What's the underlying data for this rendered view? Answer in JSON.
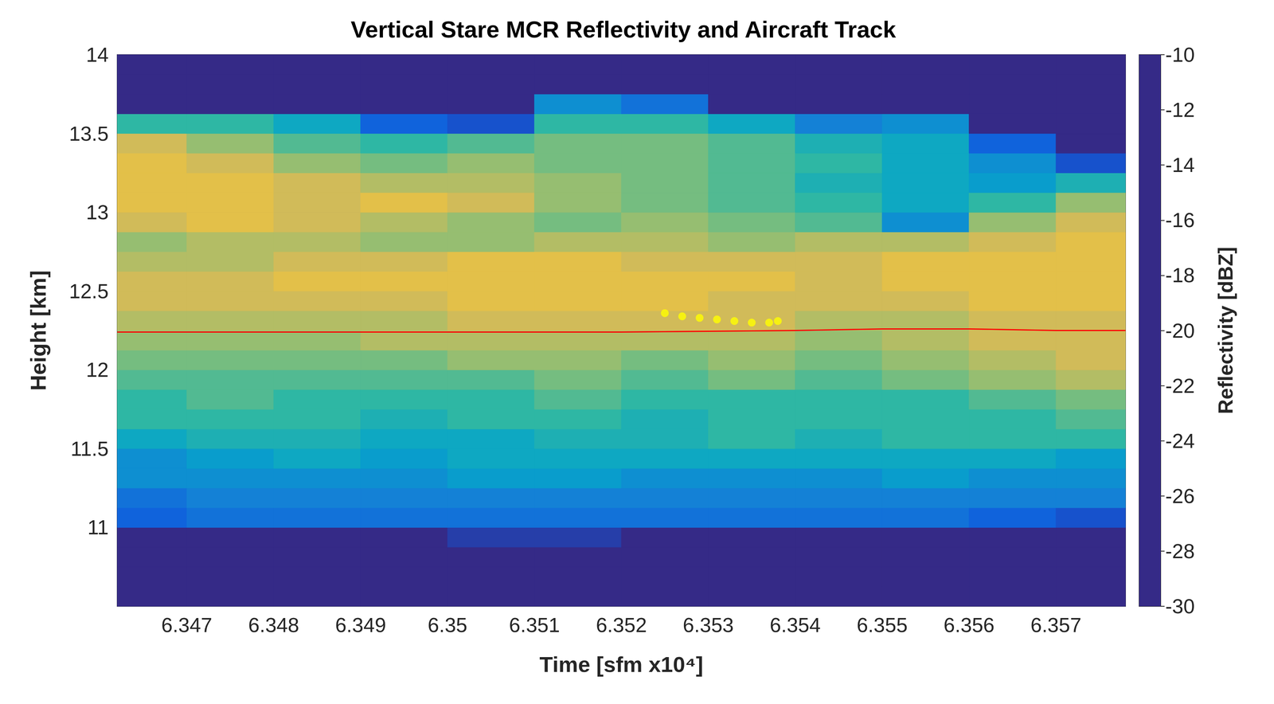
{
  "chart_data": {
    "type": "heatmap",
    "title": "Vertical Stare MCR Reflectivity and Aircraft Track",
    "x_label": "Time [sfm x10⁴]",
    "y_label": "Height [km]",
    "xlim": [
      6.3462,
      6.3578
    ],
    "ylim": [
      10.5,
      14
    ],
    "xticks": [
      6.347,
      6.348,
      6.349,
      6.35,
      6.351,
      6.352,
      6.353,
      6.354,
      6.355,
      6.356,
      6.357
    ],
    "yticks": [
      11,
      11.5,
      12,
      12.5,
      13,
      13.5,
      14
    ],
    "x": [
      6.3465,
      6.3475,
      6.3485,
      6.3495,
      6.3505,
      6.3515,
      6.3525,
      6.3535,
      6.3545,
      6.3555,
      6.3565,
      6.3575
    ],
    "y": [
      10.5625,
      10.6875,
      10.8125,
      10.9375,
      11.0625,
      11.1875,
      11.3125,
      11.4375,
      11.5625,
      11.6875,
      11.8125,
      11.9375,
      12.0625,
      12.1875,
      12.3125,
      12.4375,
      12.5625,
      12.6875,
      12.8125,
      12.9375,
      13.0625,
      13.1875,
      13.3125,
      13.4375,
      13.5625,
      13.6875,
      13.8125,
      13.9375
    ],
    "values": [
      [
        -30,
        -30,
        -30,
        -30,
        -30,
        -30,
        -30,
        -30,
        -30,
        -30,
        -30,
        -30
      ],
      [
        -30,
        -30,
        -30,
        -30,
        -30,
        -30,
        -30,
        -30,
        -30,
        -30,
        -30,
        -30
      ],
      [
        -30,
        -30,
        -30,
        -30,
        -30,
        -30,
        -30,
        -30,
        -30,
        -30,
        -30,
        -30
      ],
      [
        -30,
        -30,
        -30,
        -30,
        -29,
        -29,
        -30,
        -30,
        -30,
        -30,
        -30,
        -30
      ],
      [
        -27,
        -26,
        -26,
        -26,
        -26,
        -26,
        -26,
        -26,
        -26,
        -26,
        -27,
        -28
      ],
      [
        -26,
        -25,
        -25,
        -25,
        -25,
        -25,
        -25,
        -25,
        -25,
        -25,
        -25,
        -25
      ],
      [
        -24,
        -24,
        -24,
        -24,
        -23,
        -23,
        -24,
        -24,
        -24,
        -23,
        -24,
        -24
      ],
      [
        -24,
        -23,
        -22,
        -23,
        -22,
        -22,
        -22,
        -22,
        -22,
        -22,
        -22,
        -23
      ],
      [
        -22,
        -21,
        -21,
        -22,
        -22,
        -21,
        -21,
        -20,
        -21,
        -20,
        -20,
        -20
      ],
      [
        -20,
        -20,
        -20,
        -21,
        -20,
        -20,
        -21,
        -20,
        -20,
        -20,
        -20,
        -19
      ],
      [
        -20,
        -19,
        -20,
        -20,
        -20,
        -19,
        -20,
        -20,
        -20,
        -20,
        -19,
        -18
      ],
      [
        -19,
        -19,
        -19,
        -19,
        -19,
        -18,
        -19,
        -18,
        -19,
        -18,
        -17,
        -16
      ],
      [
        -18,
        -18,
        -18,
        -18,
        -17,
        -17,
        -18,
        -17,
        -18,
        -17,
        -16,
        -15
      ],
      [
        -17,
        -17,
        -17,
        -16,
        -16,
        -16,
        -16,
        -16,
        -17,
        -16,
        -15,
        -15
      ],
      [
        -16,
        -16,
        -16,
        -16,
        -15,
        -15,
        -15,
        -15,
        -16,
        -16,
        -15,
        -15
      ],
      [
        -15,
        -15,
        -15,
        -15,
        -14,
        -14,
        -14,
        -15,
        -15,
        -15,
        -14,
        -14
      ],
      [
        -15,
        -15,
        -14,
        -14,
        -14,
        -14,
        -14,
        -14,
        -15,
        -14,
        -14,
        -14
      ],
      [
        -16,
        -16,
        -15,
        -15,
        -14,
        -14,
        -15,
        -15,
        -15,
        -14,
        -14,
        -14
      ],
      [
        -17,
        -16,
        -16,
        -17,
        -17,
        -16,
        -16,
        -17,
        -16,
        -16,
        -15,
        -14
      ],
      [
        -15,
        -14,
        -15,
        -16,
        -17,
        -18,
        -17,
        -18,
        -19,
        -24,
        -17,
        -15
      ],
      [
        -14,
        -14,
        -15,
        -14,
        -15,
        -17,
        -18,
        -19,
        -20,
        -22,
        -20,
        -17
      ],
      [
        -14,
        -14,
        -15,
        -16,
        -16,
        -17,
        -18,
        -19,
        -21,
        -22,
        -23,
        -21
      ],
      [
        -14,
        -15,
        -17,
        -18,
        -17,
        -18,
        -18,
        -19,
        -20,
        -22,
        -24,
        -28
      ],
      [
        -15,
        -17,
        -19,
        -20,
        -19,
        -18,
        -18,
        -19,
        -21,
        -22,
        -27,
        -30
      ],
      [
        -20,
        -20,
        -22,
        -27,
        -28,
        -20,
        -20,
        -22,
        -25,
        -24,
        -30,
        -30
      ],
      [
        -30,
        -30,
        -30,
        -30,
        -30,
        -24,
        -26,
        -30,
        -30,
        -30,
        -30,
        -30
      ],
      [
        -30,
        -30,
        -30,
        -30,
        -30,
        -30,
        -30,
        -30,
        -30,
        -30,
        -30,
        -30
      ],
      [
        -30,
        -30,
        -30,
        -30,
        -30,
        -30,
        -30,
        -30,
        -30,
        -30,
        -30,
        -30
      ]
    ],
    "colorbar": {
      "label": "Reflectivity [dBZ]",
      "range": [
        -30,
        -10
      ],
      "ticks": [
        -30,
        -28,
        -26,
        -24,
        -22,
        -20,
        -18,
        -16,
        -14,
        -12,
        -10
      ]
    },
    "series": [
      {
        "type": "line",
        "color": "#ff0000",
        "x": [
          6.3462,
          6.347,
          6.348,
          6.349,
          6.35,
          6.351,
          6.352,
          6.353,
          6.354,
          6.355,
          6.356,
          6.357,
          6.3578
        ],
        "values": [
          12.24,
          12.24,
          12.24,
          12.24,
          12.24,
          12.24,
          12.24,
          12.245,
          12.25,
          12.26,
          12.26,
          12.25,
          12.25
        ]
      },
      {
        "type": "scatter",
        "color": "#ffff00",
        "x": [
          6.3525,
          6.3527,
          6.3529,
          6.3531,
          6.3533,
          6.3535,
          6.3537,
          6.3538
        ],
        "values": [
          12.36,
          12.34,
          12.33,
          12.32,
          12.31,
          12.3,
          12.3,
          12.31
        ]
      }
    ]
  }
}
